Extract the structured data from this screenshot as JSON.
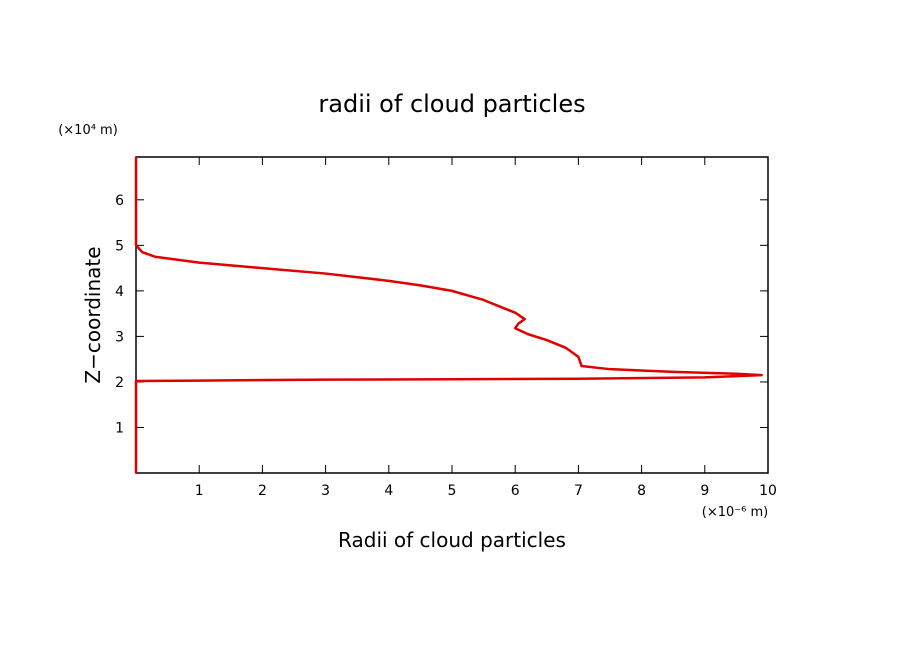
{
  "chart_data": {
    "type": "line",
    "title": "radii of cloud particles",
    "x_label": "Radii of cloud particles",
    "y_label": "Z−coordinate",
    "x_unit": "(×10⁻⁶ m)",
    "y_unit": "(×10⁴ m)",
    "series": [
      {
        "color": "#e00000",
        "x": [
          0,
          0,
          0.1,
          0.3,
          1,
          2,
          3,
          4,
          4.5,
          5,
          5.5,
          5.8,
          6,
          6.15,
          6.05,
          6,
          6.2,
          6.5,
          6.8,
          7,
          7.05,
          7.5,
          8.5,
          9.5,
          9.9,
          9,
          7,
          5,
          3,
          1,
          0,
          0
        ],
        "values": [
          6.94,
          5,
          4.85,
          4.75,
          4.62,
          4.5,
          4.38,
          4.22,
          4.12,
          4,
          3.8,
          3.63,
          3.52,
          3.38,
          3.28,
          3.18,
          3.05,
          2.92,
          2.75,
          2.55,
          2.35,
          2.28,
          2.22,
          2.18,
          2.15,
          2.1,
          2.07,
          2.06,
          2.05,
          2.03,
          2.02,
          0
        ]
      }
    ],
    "xlim": [
      0,
      10
    ],
    "xticks": [
      1,
      2,
      3,
      4,
      5,
      6,
      7,
      8,
      9,
      10
    ],
    "ylim": [
      0,
      6.94
    ],
    "yticks": [
      1,
      2,
      3,
      4,
      5,
      6
    ]
  }
}
